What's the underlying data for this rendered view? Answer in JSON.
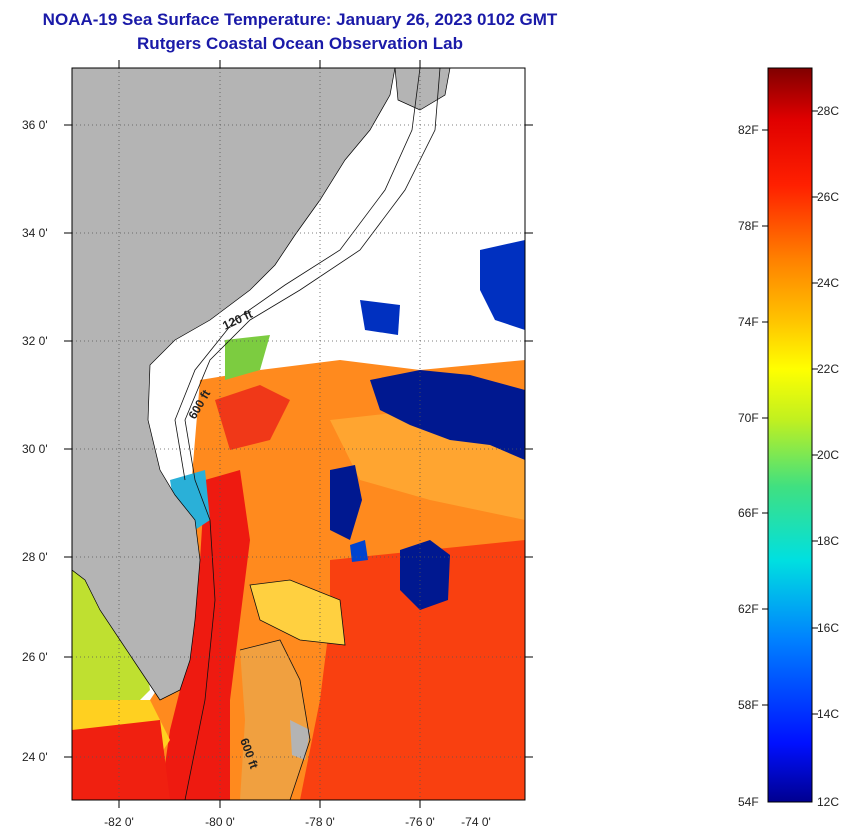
{
  "header": {
    "title": "NOAA-19 Sea Surface Temperature:  January 26, 2023 0102 GMT",
    "subtitle": "Rutgers Coastal Ocean Observation Lab"
  },
  "map": {
    "lat_labels": [
      "36 0'",
      "34 0'",
      "32 0'",
      "30 0'",
      "28 0'",
      "26 0'",
      "24 0'"
    ],
    "lon_labels": [
      "-82 0'",
      "-80 0'",
      "-78 0'",
      "-76 0'",
      "-74 0'"
    ],
    "contour_labels": [
      "120 ft",
      "600 ft",
      "600 ft"
    ]
  },
  "colorbar": {
    "fahrenheit_labels": [
      "82F",
      "78F",
      "74F",
      "70F",
      "66F",
      "62F",
      "58F",
      "54F"
    ],
    "celsius_labels": [
      "28C",
      "26C",
      "24C",
      "22C",
      "20C",
      "18C",
      "16C",
      "14C",
      "12C"
    ]
  },
  "colors": {
    "land": "#b4b4b4",
    "cloud": "#ffffff",
    "title": "#1a1aa8",
    "frame": "#000000"
  }
}
